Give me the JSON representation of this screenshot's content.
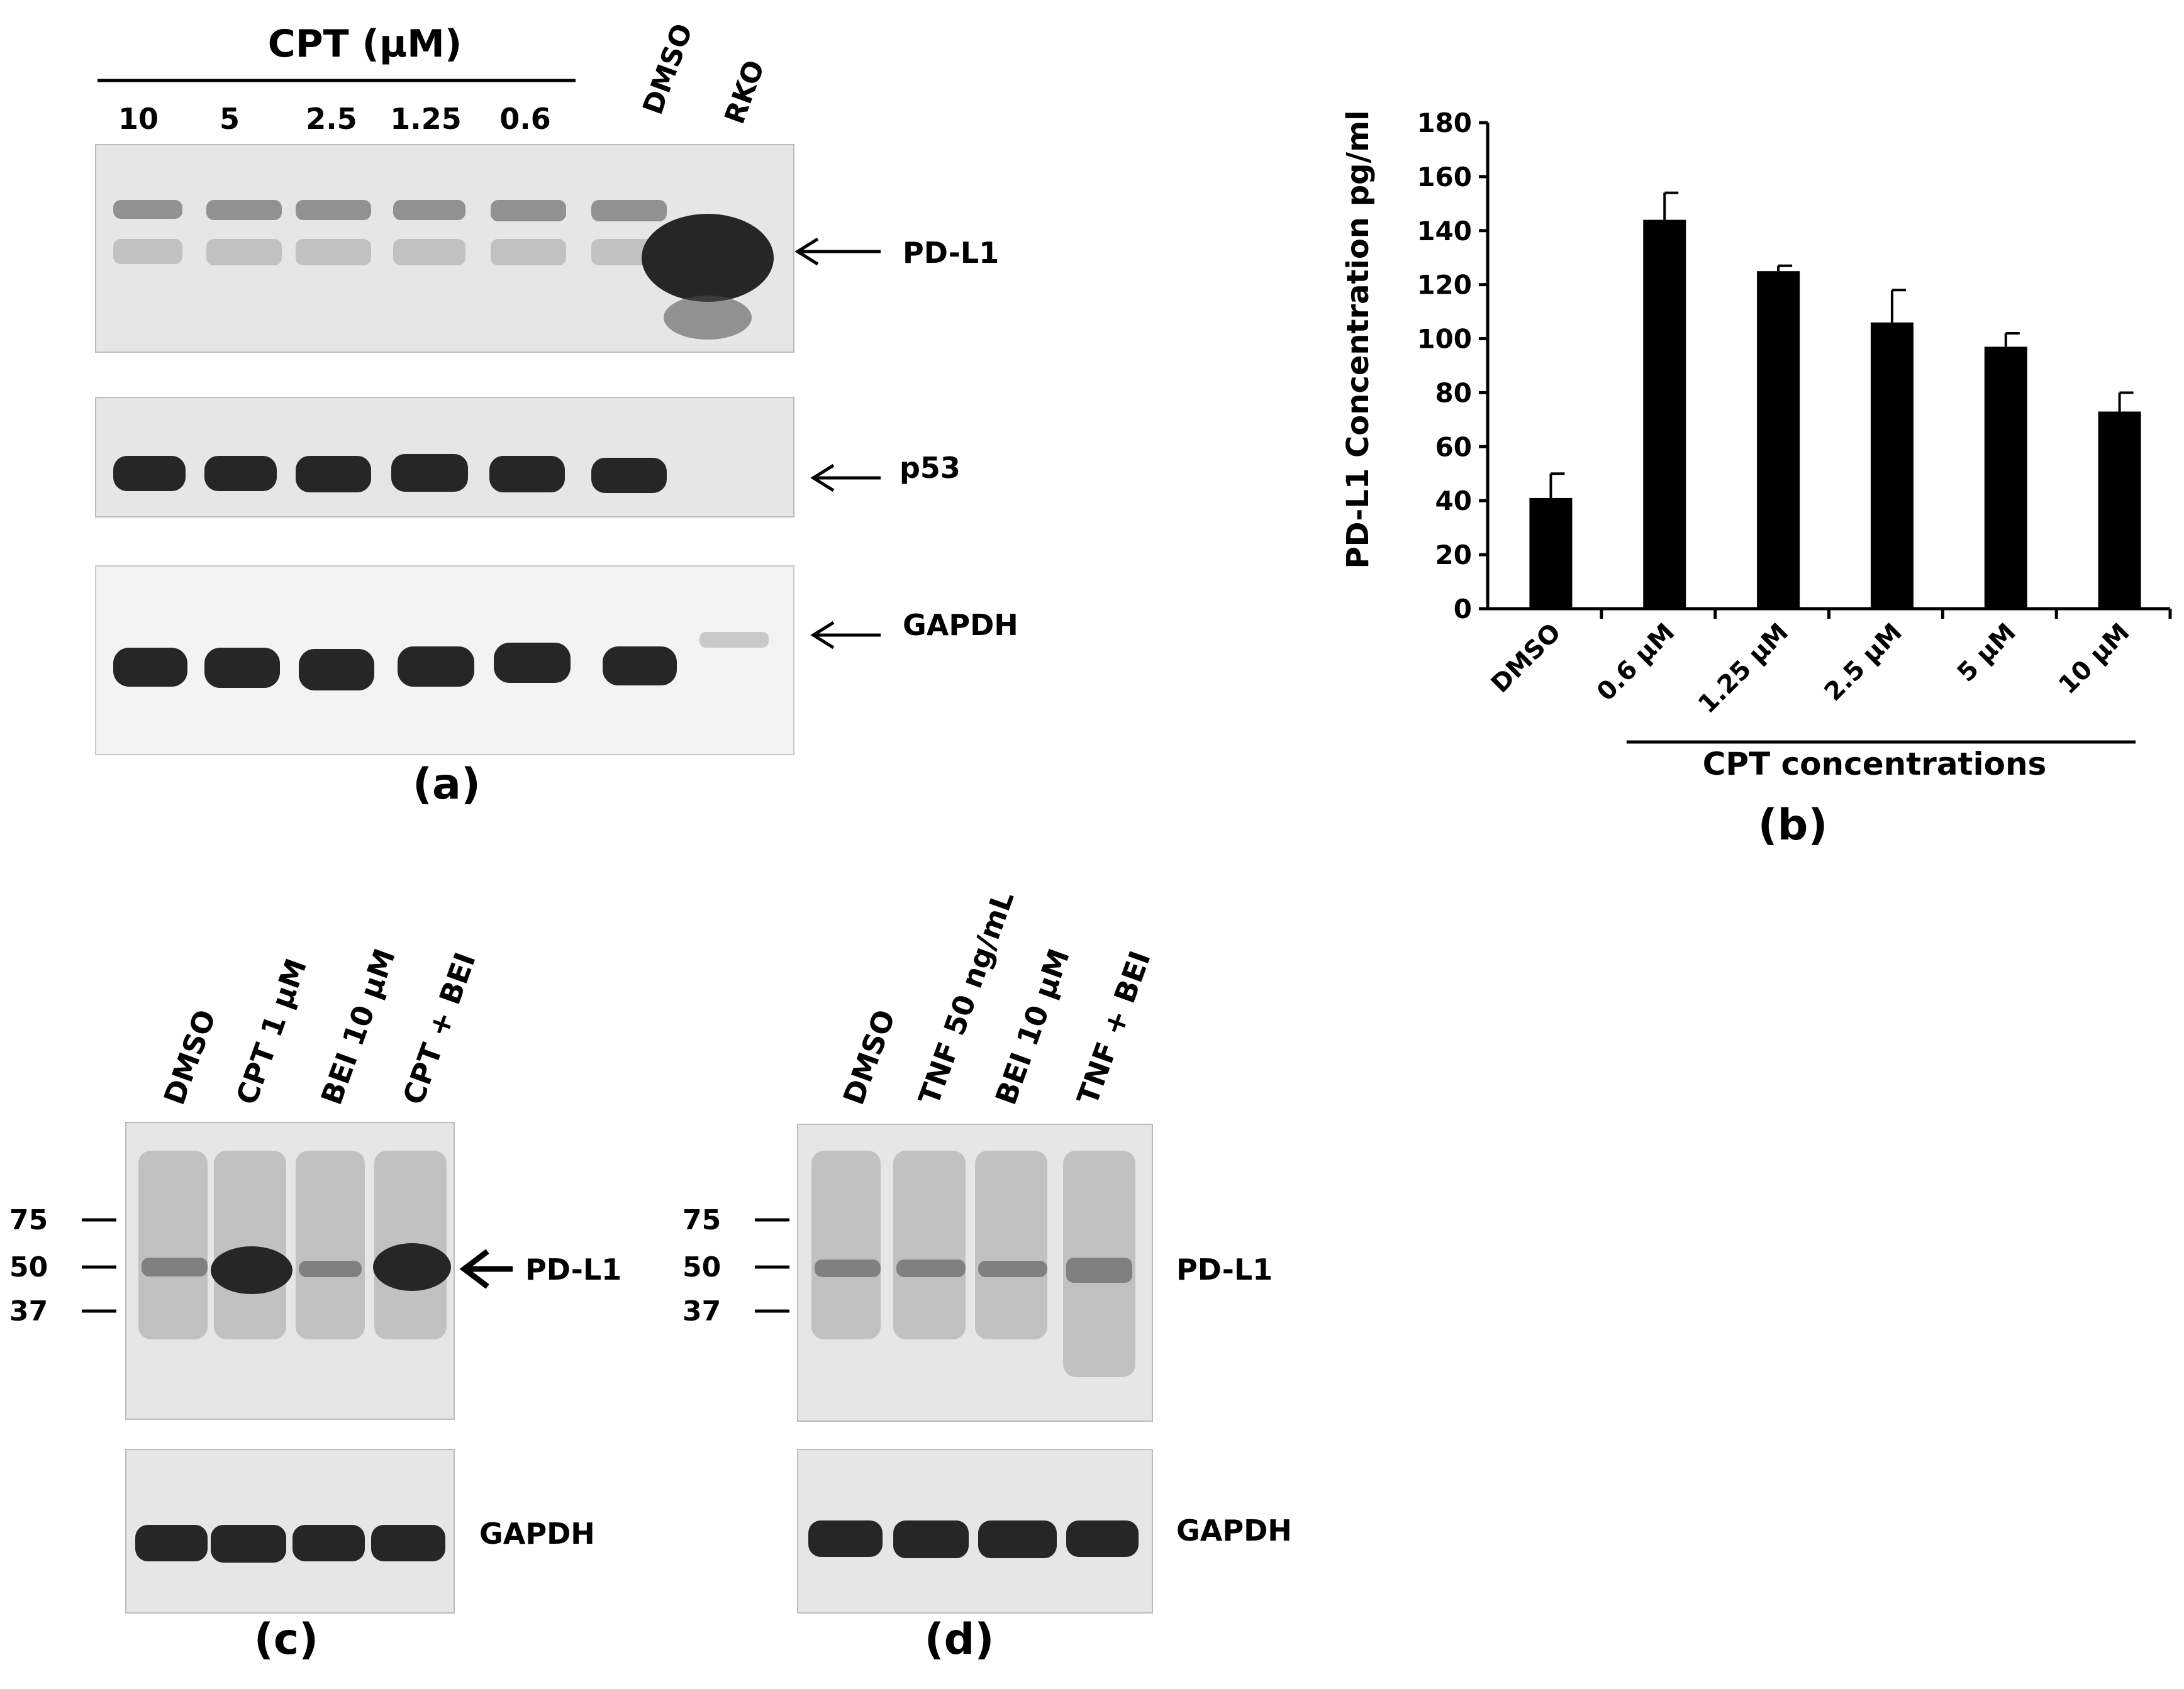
{
  "panel_a": {
    "label": "(a)",
    "header": "CPT (µM)",
    "lanes": [
      "10",
      "5",
      "2.5",
      "1.25",
      "0.6"
    ],
    "extra_lanes": [
      "DMSO",
      "RKO"
    ],
    "blot_labels": [
      "PD-L1",
      "p53",
      "GAPDH"
    ]
  },
  "panel_b": {
    "label": "(b)",
    "chart_data": {
      "type": "bar",
      "categories": [
        "DMSO",
        "0.6 µM",
        "1.25 µM",
        "2.5 µM",
        "5 µM",
        "10 µM"
      ],
      "values": [
        41,
        144,
        125,
        106,
        97,
        73
      ],
      "errors": [
        9,
        10,
        2,
        12,
        5,
        7
      ],
      "title": "",
      "xlabel": "CPT concentrations",
      "ylabel": "PD-L1 Concentration pg/ml",
      "ylim": [
        0,
        180
      ],
      "yticks": [
        "0",
        "20",
        "40",
        "60",
        "80",
        "100",
        "120",
        "140",
        "160",
        "180"
      ],
      "bar_color": "#000000"
    }
  },
  "panel_c": {
    "label": "(c)",
    "lanes": [
      "DMSO",
      "CPT 1 µM",
      "BEI 10 µM",
      "CPT + BEI"
    ],
    "markers": [
      "75",
      "50",
      "37"
    ],
    "blot_labels": [
      "PD-L1",
      "GAPDH"
    ]
  },
  "panel_d": {
    "label": "(d)",
    "lanes": [
      "DMSO",
      "TNF 50 ng/mL",
      "BEI 10 µM",
      "TNF + BEI"
    ],
    "markers": [
      "75",
      "50",
      "37"
    ],
    "blot_labels": [
      "PD-L1",
      "GAPDH"
    ]
  }
}
